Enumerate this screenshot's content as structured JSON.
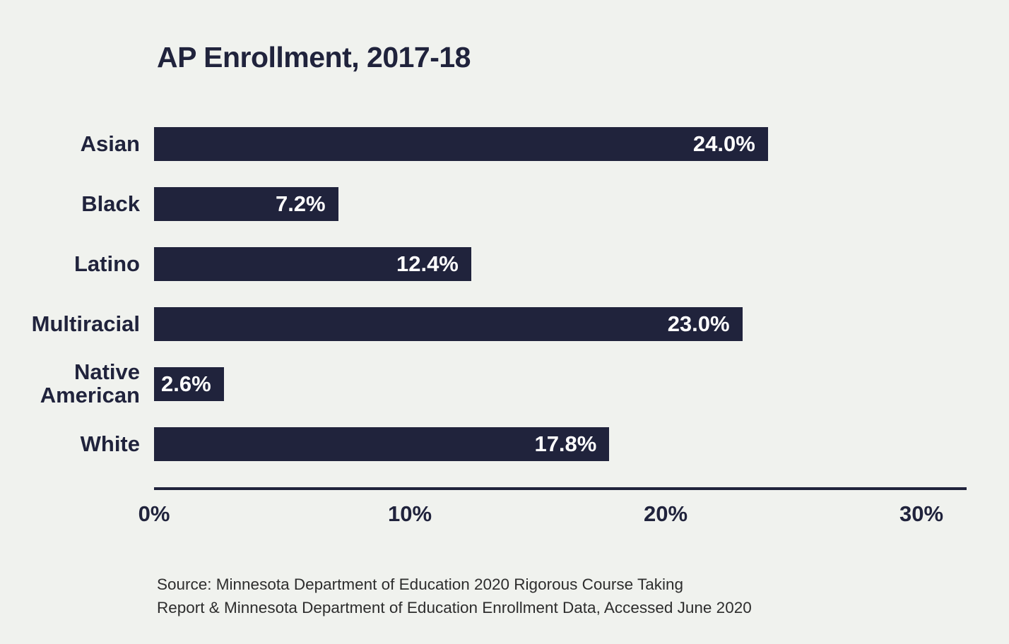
{
  "chart_data": {
    "type": "bar",
    "orientation": "horizontal",
    "title": "AP Enrollment, 2017-18",
    "categories": [
      "Asian",
      "Black",
      "Latino",
      "Multiracial",
      "Native American",
      "White"
    ],
    "values": [
      24.0,
      7.2,
      12.4,
      23.0,
      2.6,
      17.8
    ],
    "value_labels": [
      "24.0%",
      "7.2%",
      "12.4%",
      "23.0%",
      "2.6%",
      "17.8%"
    ],
    "x_ticks": [
      "0%",
      "10%",
      "20%",
      "30%"
    ],
    "xlim": [
      0,
      31.8
    ],
    "xlabel": "",
    "ylabel": "",
    "grid": false,
    "legend": "none",
    "source_lines": [
      "Source: Minnesota Department of Education 2020 Rigorous Course Taking",
      "Report & Minnesota Department of Education Enrollment Data, Accessed June 2020"
    ],
    "colors": {
      "bar": "#20233c",
      "background": "#f0f2ee",
      "bar_label_text": "#ffffff",
      "axis_text": "#20233c",
      "source_text": "#2d2d2d"
    }
  }
}
